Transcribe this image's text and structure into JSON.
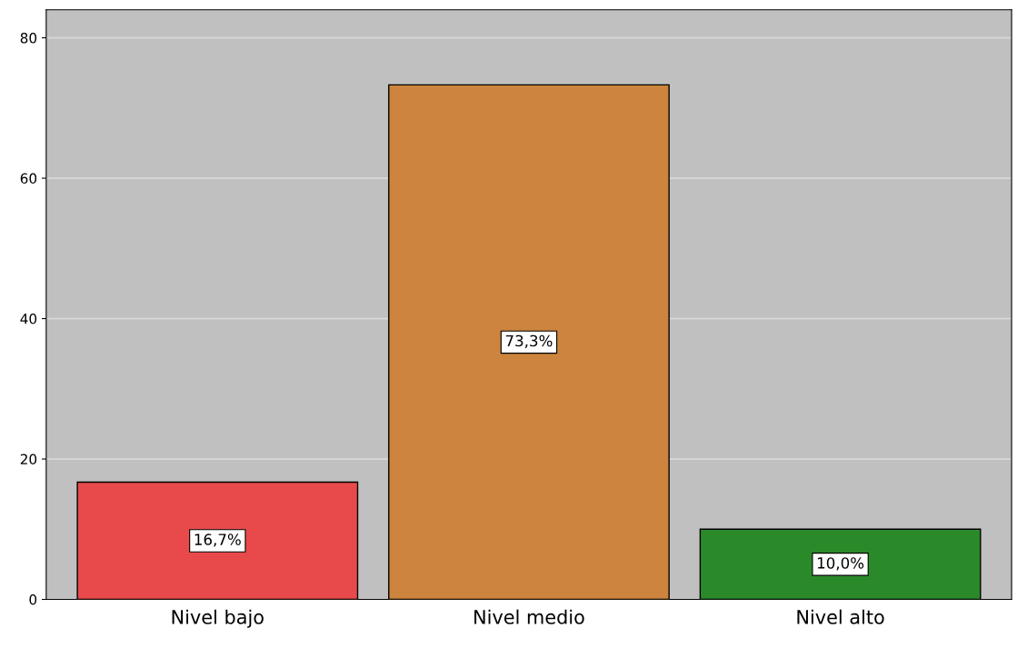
{
  "chart_data": {
    "type": "bar",
    "categories": [
      "Nivel bajo",
      "Nivel medio",
      "Nivel alto"
    ],
    "values": [
      16.7,
      73.3,
      10.0
    ],
    "colors": [
      "#e84a4b",
      "#cc843e",
      "#2a8a2a"
    ],
    "value_labels": [
      "16,7%",
      "73,3%",
      "10,0%"
    ],
    "ylim": [
      0,
      84
    ],
    "yticks": [
      0,
      20,
      40,
      60,
      80
    ],
    "grid": "y"
  }
}
